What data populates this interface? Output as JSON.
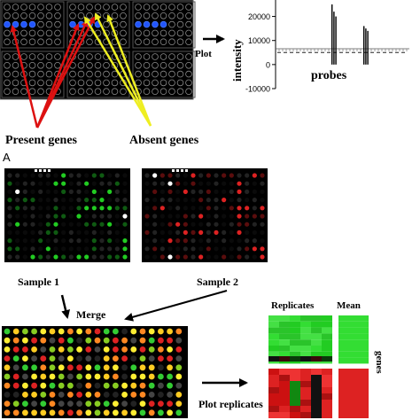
{
  "top": {
    "plot_label": "Plot",
    "present_label": "Present genes",
    "absent_label": "Absent genes"
  },
  "chart_data": {
    "type": "bar",
    "title": "",
    "xlabel": "probes",
    "ylabel": "intensity",
    "yticks": [
      "20000",
      "10000",
      "0",
      "-10000"
    ],
    "ylim": [
      -10000,
      25000
    ],
    "threshold": 5000,
    "threshold_style": "dashed",
    "peak_groups": [
      {
        "values": [
          25000,
          22000,
          20000
        ]
      },
      {
        "values": [
          16000,
          15000,
          14000
        ]
      }
    ]
  },
  "section_a": {
    "panel_label": "A"
  },
  "bottom": {
    "sample1_label": "Sample 1",
    "sample2_label": "Sample 2",
    "merge_label": "Merge",
    "replicates_label": "Replicates",
    "mean_label": "Mean",
    "genes_label": "genes",
    "plot_replicates_label": "Plot replicates"
  },
  "colors": {
    "present_arrow": "#dd1111",
    "absent_arrow": "#eeee22",
    "array_background": "#000000",
    "green_channel": "#22cc22",
    "red_channel": "#dd2222",
    "spot_blue": "#2255ff"
  }
}
